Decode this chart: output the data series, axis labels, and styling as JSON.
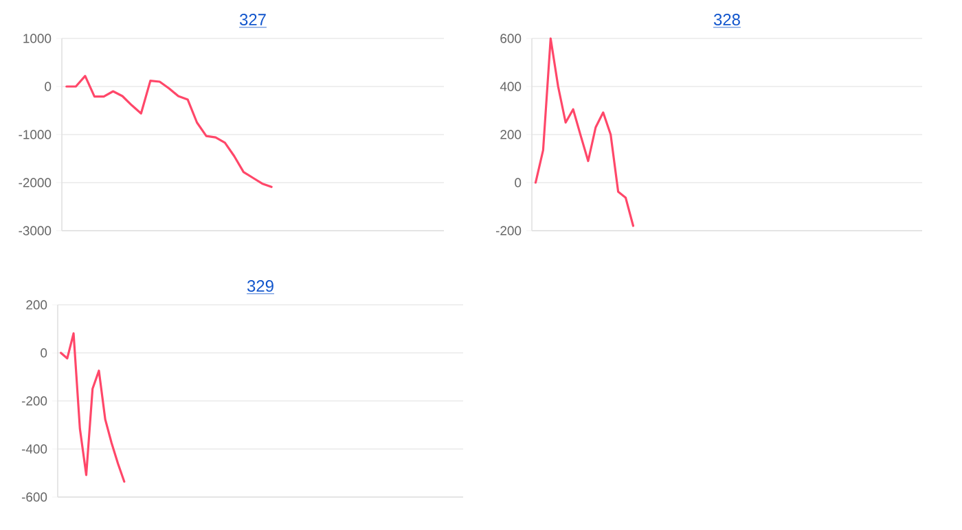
{
  "chart_data": [
    {
      "type": "line",
      "title": "327",
      "categories": [
        null,
        null,
        null,
        null,
        null,
        null,
        null,
        null,
        null,
        null,
        null,
        null,
        null,
        null,
        null,
        null,
        null,
        null,
        null,
        null,
        null,
        null,
        null,
        null,
        null,
        null,
        null,
        null,
        null,
        null,
        null,
        null,
        null,
        null,
        null,
        null,
        null,
        null,
        null,
        null,
        null
      ],
      "series": [
        {
          "color": "#ff4769",
          "values": [
            0,
            0,
            220,
            -210,
            -210,
            -100,
            -200,
            -390,
            -560,
            120,
            100,
            -40,
            -200,
            -270,
            -750,
            -1030,
            -1060,
            -1170,
            -1450,
            -1780,
            -1900,
            -2020,
            -2090,
            null,
            null,
            null,
            null,
            null,
            null,
            null,
            null,
            null,
            null,
            null,
            null,
            null,
            null,
            null,
            null,
            null,
            null
          ]
        }
      ],
      "ylim": [
        -3000,
        1000
      ],
      "yticks": [
        -3000,
        -2000,
        -1000,
        0,
        1000
      ],
      "grid": "y",
      "tick_labels": "y",
      "marker": "none",
      "line_style": "solid"
    },
    {
      "type": "line",
      "title": "328",
      "categories": [
        null,
        null,
        null,
        null,
        null,
        null,
        null,
        null,
        null,
        null,
        null,
        null,
        null,
        null,
        null,
        null,
        null,
        null,
        null,
        null,
        null,
        null,
        null,
        null,
        null,
        null,
        null,
        null,
        null,
        null,
        null,
        null,
        null,
        null,
        null,
        null,
        null,
        null,
        null,
        null,
        null,
        null,
        null,
        null,
        null,
        null,
        null,
        null,
        null,
        null,
        null,
        null
      ],
      "series": [
        {
          "color": "#ff4769",
          "values": [
            0,
            135,
            600,
            400,
            250,
            305,
            196,
            90,
            230,
            292,
            200,
            -38,
            -63,
            -180,
            null,
            null,
            null,
            null,
            null,
            null,
            null,
            null,
            null,
            null,
            null,
            null,
            null,
            null,
            null,
            null,
            null,
            null,
            null,
            null,
            null,
            null,
            null,
            null,
            null,
            null,
            null,
            null,
            null,
            null,
            null,
            null,
            null,
            null,
            null,
            null,
            null,
            null
          ]
        }
      ],
      "ylim": [
        -200,
        600
      ],
      "yticks": [
        -200,
        0,
        200,
        400,
        600
      ],
      "grid": "y",
      "tick_labels": "y",
      "marker": "none",
      "line_style": "solid"
    },
    {
      "type": "line",
      "title": "329",
      "categories": [
        null,
        null,
        null,
        null,
        null,
        null,
        null,
        null,
        null,
        null,
        null,
        null,
        null,
        null,
        null,
        null,
        null,
        null,
        null,
        null,
        null,
        null,
        null,
        null,
        null,
        null,
        null,
        null,
        null,
        null,
        null,
        null,
        null,
        null,
        null,
        null,
        null,
        null,
        null,
        null,
        null,
        null,
        null,
        null,
        null,
        null,
        null,
        null,
        null,
        null,
        null,
        null,
        null,
        null,
        null,
        null,
        null,
        null,
        null,
        null,
        null,
        null,
        null,
        null
      ],
      "series": [
        {
          "color": "#ff4769",
          "values": [
            0,
            -23,
            81,
            -315,
            -508,
            -149,
            -74,
            -277,
            -375,
            -460,
            -536,
            null,
            null,
            null,
            null,
            null,
            null,
            null,
            null,
            null,
            null,
            null,
            null,
            null,
            null,
            null,
            null,
            null,
            null,
            null,
            null,
            null,
            null,
            null,
            null,
            null,
            null,
            null,
            null,
            null,
            null,
            null,
            null,
            null,
            null,
            null,
            null,
            null,
            null,
            null,
            null,
            null,
            null,
            null,
            null,
            null,
            null,
            null,
            null,
            null,
            null,
            null,
            null,
            null
          ]
        }
      ],
      "ylim": [
        -600,
        200
      ],
      "yticks": [
        -600,
        -400,
        -200,
        0,
        200
      ],
      "grid": "y",
      "tick_labels": "y",
      "marker": "none",
      "line_style": "solid"
    }
  ]
}
